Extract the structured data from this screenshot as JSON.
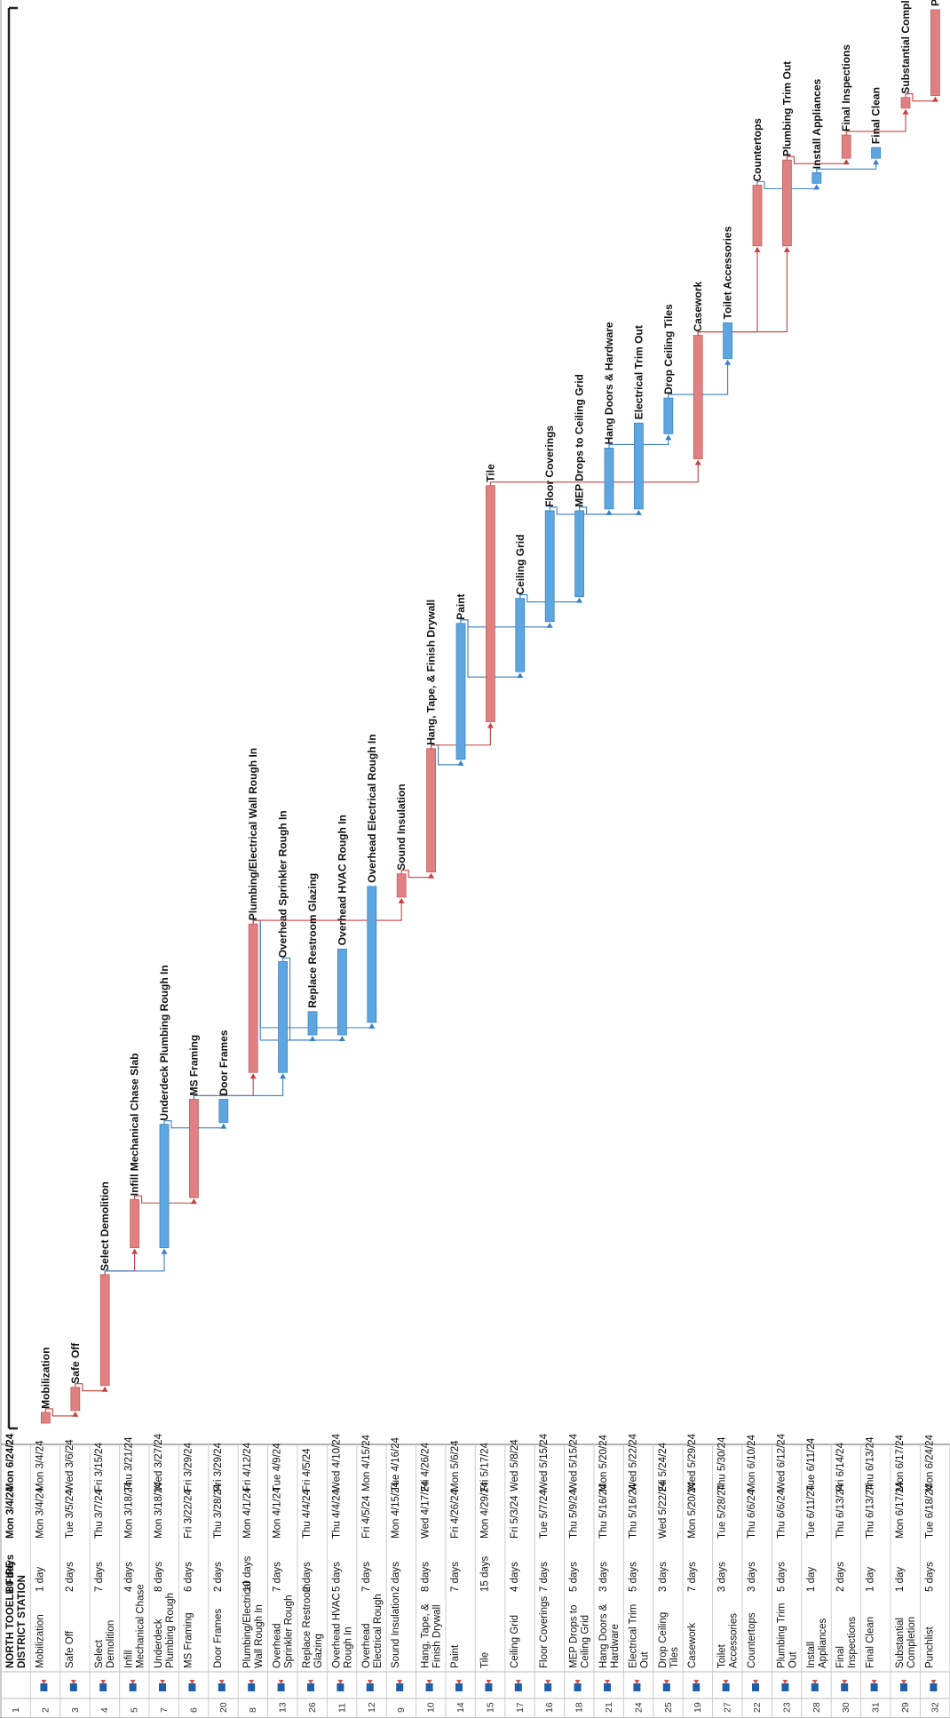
{
  "chart_data": {
    "type": "gantt",
    "project": {
      "row_id": "1",
      "name": "NORTH TOOELE FIRE DISTRICT STATION",
      "duration": "80 days",
      "start": "Mon 3/4/24",
      "finish": "Mon 6/24/24"
    },
    "colors": {
      "critical": "#e08080",
      "noncritical": "#5ea6e0"
    },
    "tasks": [
      {
        "id": "2",
        "name": "Mobilization",
        "duration": "1 day",
        "start": "Mon 3/4/24",
        "finish": "Mon 3/4/24",
        "start_date": "2024-03-04",
        "end_date": "2024-03-04",
        "critical": true,
        "preds": []
      },
      {
        "id": "3",
        "name": "Safe Off",
        "duration": "2 days",
        "start": "Tue 3/5/24",
        "finish": "Wed 3/6/24",
        "start_date": "2024-03-05",
        "end_date": "2024-03-06",
        "critical": true,
        "preds": [
          "2"
        ]
      },
      {
        "id": "4",
        "name": "Select Demolition",
        "duration": "7 days",
        "start": "Thu 3/7/24",
        "finish": "Fri 3/15/24",
        "start_date": "2024-03-07",
        "end_date": "2024-03-15",
        "critical": true,
        "preds": [
          "3"
        ]
      },
      {
        "id": "5",
        "name": "Infill Mechanical Chase Slab",
        "duration": "4 days",
        "start": "Mon 3/18/24",
        "finish": "Thu 3/21/24",
        "start_date": "2024-03-18",
        "end_date": "2024-03-21",
        "critical": true,
        "preds": [
          "4"
        ]
      },
      {
        "id": "7",
        "name": "Underdeck Plumbing Rough In",
        "duration": "8 days",
        "start": "Mon 3/18/24",
        "finish": "Wed 3/27/24",
        "start_date": "2024-03-18",
        "end_date": "2024-03-27",
        "critical": false,
        "preds": [
          "4"
        ]
      },
      {
        "id": "6",
        "name": "MS Framing",
        "duration": "6 days",
        "start": "Fri 3/22/24",
        "finish": "Fri 3/29/24",
        "start_date": "2024-03-22",
        "end_date": "2024-03-29",
        "critical": true,
        "preds": [
          "5"
        ]
      },
      {
        "id": "20",
        "name": "Door Frames",
        "duration": "2 days",
        "start": "Thu 3/28/24",
        "finish": "Fri 3/29/24",
        "start_date": "2024-03-28",
        "end_date": "2024-03-29",
        "critical": false,
        "preds": [
          "7"
        ]
      },
      {
        "id": "8",
        "name": "Plumbing/Electrical Wall Rough In",
        "duration": "10 days",
        "start": "Mon 4/1/24",
        "finish": "Fri 4/12/24",
        "start_date": "2024-04-01",
        "end_date": "2024-04-12",
        "critical": true,
        "preds": [
          "6"
        ]
      },
      {
        "id": "13",
        "name": "Overhead Sprinkler Rough In",
        "duration": "7 days",
        "start": "Mon 4/1/24",
        "finish": "Tue 4/9/24",
        "start_date": "2024-04-01",
        "end_date": "2024-04-09",
        "critical": false,
        "preds": [
          "6"
        ]
      },
      {
        "id": "26",
        "name": "Replace Restroom Glazing",
        "duration": "2 days",
        "start": "Thu 4/4/24",
        "finish": "Fri 4/5/24",
        "start_date": "2024-04-04",
        "end_date": "2024-04-05",
        "critical": false,
        "preds": [
          "8"
        ]
      },
      {
        "id": "11",
        "name": "Overhead HVAC Rough In",
        "duration": "5 days",
        "start": "Thu 4/4/24",
        "finish": "Wed 4/10/24",
        "start_date": "2024-04-04",
        "end_date": "2024-04-10",
        "critical": false,
        "preds": [
          "13"
        ]
      },
      {
        "id": "12",
        "name": "Overhead Electrical Rough In",
        "duration": "7 days",
        "start": "Fri 4/5/24",
        "finish": "Mon 4/15/24",
        "start_date": "2024-04-05",
        "end_date": "2024-04-15",
        "critical": false,
        "preds": [
          "8"
        ]
      },
      {
        "id": "9",
        "name": "Sound Insulation",
        "duration": "2 days",
        "start": "Mon 4/15/24",
        "finish": "Tue 4/16/24",
        "start_date": "2024-04-15",
        "end_date": "2024-04-16",
        "critical": true,
        "preds": [
          "8"
        ]
      },
      {
        "id": "10",
        "name": "Hang, Tape, & Finish Drywall",
        "duration": "8 days",
        "start": "Wed 4/17/24",
        "finish": "Fri 4/26/24",
        "start_date": "2024-04-17",
        "end_date": "2024-04-26",
        "critical": true,
        "preds": [
          "9"
        ]
      },
      {
        "id": "14",
        "name": "Paint",
        "duration": "7 days",
        "start": "Fri 4/26/24",
        "finish": "Mon 5/6/24",
        "start_date": "2024-04-26",
        "end_date": "2024-05-06",
        "critical": false,
        "preds": [
          "10"
        ]
      },
      {
        "id": "15",
        "name": "Tile",
        "duration": "15 days",
        "start": "Mon 4/29/24",
        "finish": "Fri 5/17/24",
        "start_date": "2024-04-29",
        "end_date": "2024-05-17",
        "critical": true,
        "preds": [
          "10"
        ]
      },
      {
        "id": "17",
        "name": "Ceiling Grid",
        "duration": "4 days",
        "start": "Fri 5/3/24",
        "finish": "Wed 5/8/24",
        "start_date": "2024-05-03",
        "end_date": "2024-05-08",
        "critical": false,
        "preds": [
          "14"
        ]
      },
      {
        "id": "16",
        "name": "Floor Coverings",
        "duration": "7 days",
        "start": "Tue 5/7/24",
        "finish": "Wed 5/15/24",
        "start_date": "2024-05-07",
        "end_date": "2024-05-15",
        "critical": false,
        "preds": [
          "14"
        ]
      },
      {
        "id": "18",
        "name": "MEP Drops to Ceiling Grid",
        "duration": "5 days",
        "start": "Thu 5/9/24",
        "finish": "Wed 5/15/24",
        "start_date": "2024-05-09",
        "end_date": "2024-05-15",
        "critical": false,
        "preds": [
          "17"
        ]
      },
      {
        "id": "21",
        "name": "Hang Doors & Hardware",
        "duration": "3 days",
        "start": "Thu 5/16/24",
        "finish": "Mon 5/20/24",
        "start_date": "2024-05-16",
        "end_date": "2024-05-20",
        "critical": false,
        "preds": [
          "16"
        ]
      },
      {
        "id": "24",
        "name": "Electrical Trim Out",
        "duration": "5 days",
        "start": "Thu 5/16/24",
        "finish": "Wed 5/22/24",
        "start_date": "2024-05-16",
        "end_date": "2024-05-22",
        "critical": false,
        "preds": [
          "18"
        ]
      },
      {
        "id": "25",
        "name": "Drop Ceiling Tiles",
        "duration": "3 days",
        "start": "Wed 5/22/24",
        "finish": "Fri 5/24/24",
        "start_date": "2024-05-22",
        "end_date": "2024-05-24",
        "critical": false,
        "preds": [
          "21"
        ]
      },
      {
        "id": "19",
        "name": "Casework",
        "duration": "7 days",
        "start": "Mon 5/20/24",
        "finish": "Wed 5/29/24",
        "start_date": "2024-05-20",
        "end_date": "2024-05-29",
        "critical": true,
        "preds": [
          "15"
        ]
      },
      {
        "id": "27",
        "name": "Toilet Accessories",
        "duration": "3 days",
        "start": "Tue 5/28/24",
        "finish": "Thu 5/30/24",
        "start_date": "2024-05-28",
        "end_date": "2024-05-30",
        "critical": false,
        "preds": [
          "25"
        ]
      },
      {
        "id": "22",
        "name": "Countertops",
        "duration": "3 days",
        "start": "Thu 6/6/24",
        "finish": "Mon 6/10/24",
        "start_date": "2024-06-06",
        "end_date": "2024-06-10",
        "critical": true,
        "preds": [
          "19"
        ]
      },
      {
        "id": "23",
        "name": "Plumbing Trim Out",
        "duration": "5 days",
        "start": "Thu 6/6/24",
        "finish": "Wed 6/12/24",
        "start_date": "2024-06-06",
        "end_date": "2024-06-12",
        "critical": true,
        "preds": [
          "19"
        ]
      },
      {
        "id": "28",
        "name": "Install Appliances",
        "duration": "1 day",
        "start": "Tue 6/11/24",
        "finish": "Tue 6/11/24",
        "start_date": "2024-06-11",
        "end_date": "2024-06-11",
        "critical": false,
        "preds": [
          "22"
        ]
      },
      {
        "id": "30",
        "name": "Final Inspections",
        "duration": "2 days",
        "start": "Thu 6/13/24",
        "finish": "Fri 6/14/24",
        "start_date": "2024-06-13",
        "end_date": "2024-06-14",
        "critical": true,
        "preds": [
          "23"
        ]
      },
      {
        "id": "31",
        "name": "Final Clean",
        "duration": "1 day",
        "start": "Thu 6/13/24",
        "finish": "Thu 6/13/24",
        "start_date": "2024-06-13",
        "end_date": "2024-06-13",
        "critical": false,
        "preds": [
          "28"
        ]
      },
      {
        "id": "29",
        "name": "Substantial Completion",
        "duration": "1 day",
        "start": "Mon 6/17/24",
        "finish": "Mon 6/17/24",
        "start_date": "2024-06-17",
        "end_date": "2024-06-17",
        "critical": true,
        "preds": [
          "30"
        ]
      },
      {
        "id": "32",
        "name": "Punchlist",
        "duration": "5 days",
        "start": "Tue 6/18/24",
        "finish": "Mon 6/24/24",
        "start_date": "2024-06-18",
        "end_date": "2024-06-24",
        "critical": true,
        "preds": [
          "29"
        ]
      }
    ]
  }
}
